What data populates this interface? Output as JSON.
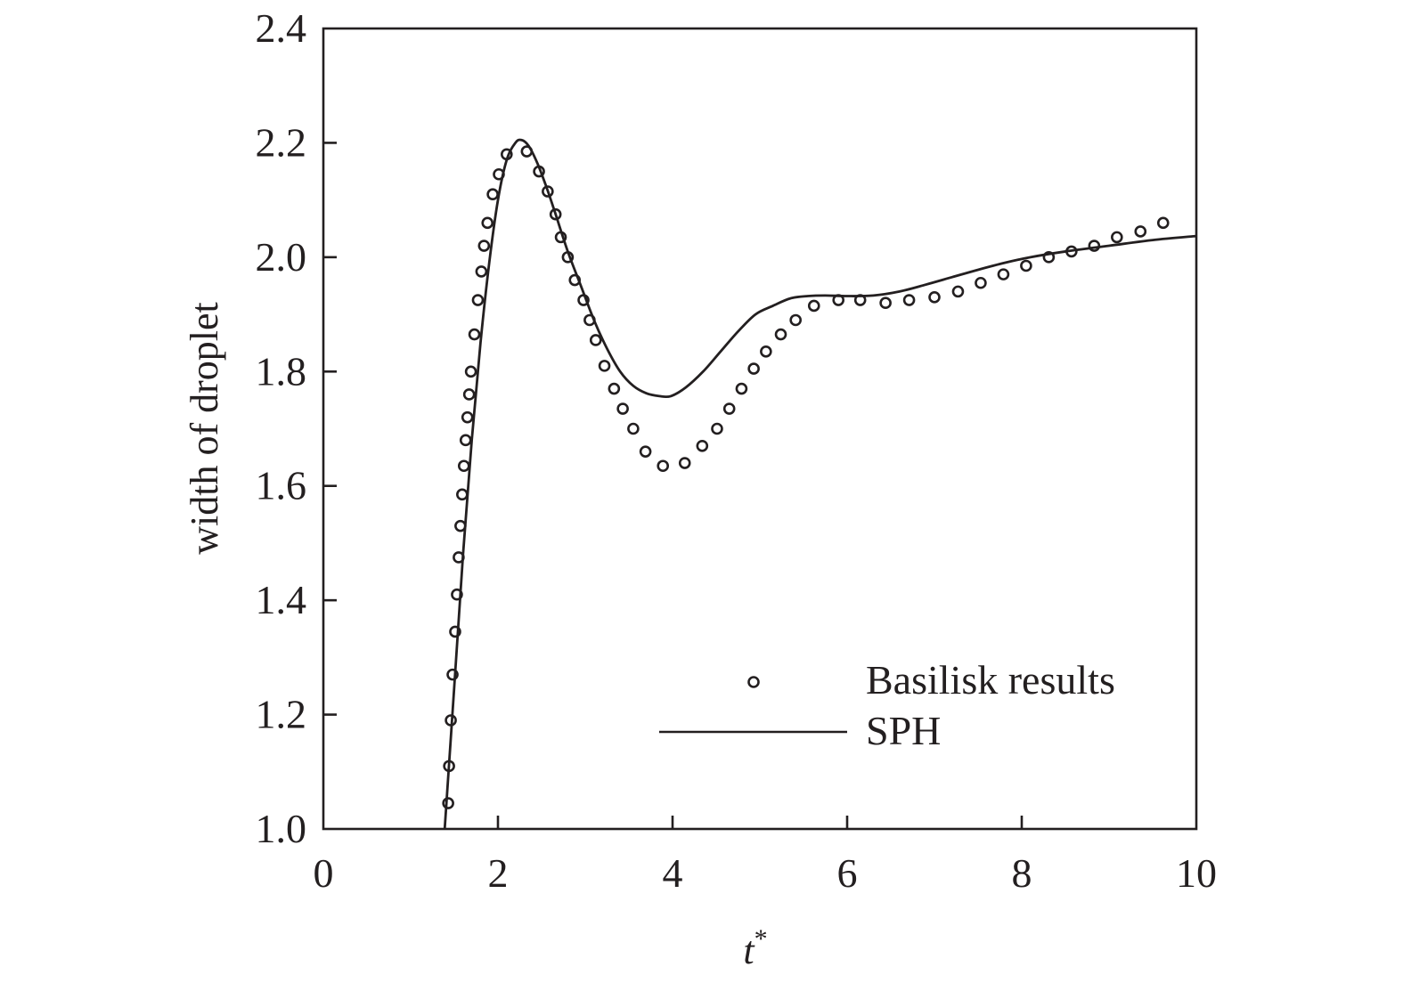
{
  "chart_data": {
    "type": "line",
    "title": "",
    "xlabel": "t*",
    "xlabel_base": "t",
    "xlabel_sup": "*",
    "ylabel": "width of droplet",
    "xlim": [
      0,
      10
    ],
    "ylim": [
      1.0,
      2.4
    ],
    "xticks": [
      0,
      2,
      4,
      6,
      8,
      10
    ],
    "xtick_labels": [
      "0",
      "2",
      "4",
      "6",
      "8",
      "10"
    ],
    "yticks": [
      1.0,
      1.2,
      1.4,
      1.6,
      1.8,
      2.0,
      2.2,
      2.4
    ],
    "ytick_labels": [
      "1.0",
      "1.2",
      "1.4",
      "1.6",
      "1.8",
      "2.0",
      "2.2",
      "2.4"
    ],
    "grid": false,
    "legend_position": "lower right",
    "colors": {
      "line": "#231f20",
      "marker": "#231f20",
      "background": "#ffffff"
    },
    "series": [
      {
        "name": "Basilisk results",
        "style": "open-circle-markers",
        "x": [
          1.43,
          1.44,
          1.46,
          1.48,
          1.51,
          1.53,
          1.55,
          1.57,
          1.59,
          1.61,
          1.63,
          1.65,
          1.67,
          1.69,
          1.73,
          1.77,
          1.81,
          1.84,
          1.88,
          1.94,
          2.01,
          2.1,
          2.33,
          2.47,
          2.57,
          2.66,
          2.72,
          2.8,
          2.88,
          2.98,
          3.05,
          3.12,
          3.22,
          3.33,
          3.43,
          3.55,
          3.69,
          3.89,
          4.14,
          4.34,
          4.51,
          4.65,
          4.79,
          4.93,
          5.07,
          5.24,
          5.41,
          5.62,
          5.9,
          6.15,
          6.44,
          6.71,
          7.0,
          7.27,
          7.53,
          7.79,
          8.05,
          8.31,
          8.57,
          8.83,
          9.09,
          9.36,
          9.62
        ],
        "y": [
          1.045,
          1.11,
          1.19,
          1.27,
          1.345,
          1.41,
          1.475,
          1.53,
          1.585,
          1.635,
          1.68,
          1.72,
          1.76,
          1.8,
          1.865,
          1.925,
          1.975,
          2.02,
          2.06,
          2.11,
          2.145,
          2.18,
          2.185,
          2.15,
          2.115,
          2.075,
          2.035,
          2.0,
          1.96,
          1.925,
          1.89,
          1.855,
          1.81,
          1.77,
          1.735,
          1.7,
          1.66,
          1.635,
          1.64,
          1.67,
          1.7,
          1.735,
          1.77,
          1.805,
          1.835,
          1.865,
          1.89,
          1.915,
          1.925,
          1.925,
          1.92,
          1.925,
          1.93,
          1.94,
          1.955,
          1.97,
          1.985,
          2.0,
          2.01,
          2.02,
          2.035,
          2.045,
          2.06
        ]
      },
      {
        "name": "SPH",
        "style": "solid-line",
        "x": [
          1.39,
          1.5,
          1.6,
          1.7,
          1.8,
          1.9,
          2.0,
          2.1,
          2.2,
          2.27,
          2.35,
          2.45,
          2.55,
          2.65,
          2.8,
          2.95,
          3.1,
          3.25,
          3.4,
          3.55,
          3.7,
          3.85,
          3.98,
          4.15,
          4.35,
          4.55,
          4.75,
          4.95,
          5.15,
          5.35,
          5.55,
          5.75,
          6.0,
          6.3,
          6.6,
          6.9,
          7.2,
          7.5,
          7.8,
          8.1,
          8.5,
          9.0,
          9.5,
          10.0
        ],
        "y": [
          1.0,
          1.25,
          1.48,
          1.68,
          1.85,
          1.99,
          2.1,
          2.17,
          2.2,
          2.205,
          2.195,
          2.165,
          2.125,
          2.08,
          2.01,
          1.95,
          1.89,
          1.84,
          1.8,
          1.775,
          1.762,
          1.757,
          1.757,
          1.772,
          1.8,
          1.835,
          1.87,
          1.9,
          1.915,
          1.928,
          1.932,
          1.933,
          1.932,
          1.933,
          1.94,
          1.952,
          1.965,
          1.978,
          1.99,
          2.0,
          2.01,
          2.02,
          2.03,
          2.037
        ]
      }
    ]
  },
  "legend": {
    "items": [
      {
        "label": "Basilisk results",
        "symbol": "open-circle"
      },
      {
        "label": "SPH",
        "symbol": "solid-line"
      }
    ]
  }
}
